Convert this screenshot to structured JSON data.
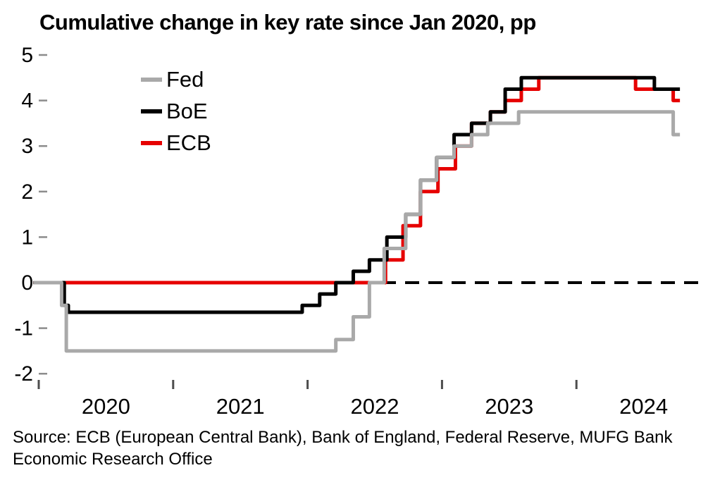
{
  "chart_data": {
    "type": "line",
    "title": "Cumulative change in key rate since Jan 2020, pp",
    "xlabel": "",
    "ylabel": "",
    "legend_position": "upper-left-inside",
    "grid": false,
    "zero_line": {
      "style": "dashed",
      "color": "#000000"
    },
    "ylim": [
      -2.3,
      5.1
    ],
    "yticks": [
      5,
      4,
      3,
      2,
      1,
      0,
      -1,
      -2
    ],
    "xtick_years": [
      "2020",
      "2021",
      "2022",
      "2023",
      "2024"
    ],
    "x_unit": "years since Jan 2020",
    "t_start": -0.04,
    "t_end": 4.77,
    "series": [
      {
        "name": "Fed",
        "color": "#a9a9a9",
        "steps": [
          [
            -0.04,
            0
          ],
          [
            0.17,
            -0.5
          ],
          [
            0.205,
            -1.5
          ],
          [
            2.21,
            -1.25
          ],
          [
            2.34,
            -0.75
          ],
          [
            2.46,
            0
          ],
          [
            2.57,
            0.75
          ],
          [
            2.73,
            1.5
          ],
          [
            2.84,
            2.25
          ],
          [
            2.96,
            2.75
          ],
          [
            3.09,
            3.0
          ],
          [
            3.22,
            3.25
          ],
          [
            3.34,
            3.5
          ],
          [
            3.57,
            3.75
          ],
          [
            4.72,
            3.25
          ]
        ]
      },
      {
        "name": "BoE",
        "color": "#000000",
        "steps": [
          [
            -0.04,
            0
          ],
          [
            0.19,
            -0.5
          ],
          [
            0.22,
            -0.65
          ],
          [
            1.96,
            -0.5
          ],
          [
            2.09,
            -0.25
          ],
          [
            2.21,
            0
          ],
          [
            2.34,
            0.25
          ],
          [
            2.46,
            0.5
          ],
          [
            2.59,
            1.0
          ],
          [
            2.73,
            1.5
          ],
          [
            2.84,
            2.25
          ],
          [
            2.96,
            2.75
          ],
          [
            3.09,
            3.25
          ],
          [
            3.22,
            3.5
          ],
          [
            3.36,
            3.75
          ],
          [
            3.47,
            4.25
          ],
          [
            3.59,
            4.5
          ],
          [
            4.58,
            4.25
          ]
        ]
      },
      {
        "name": "ECB",
        "color": "#e60000",
        "steps": [
          [
            -0.04,
            0
          ],
          [
            2.58,
            0.5
          ],
          [
            2.71,
            1.25
          ],
          [
            2.84,
            2.0
          ],
          [
            2.97,
            2.5
          ],
          [
            3.1,
            3.0
          ],
          [
            3.22,
            3.5
          ],
          [
            3.36,
            3.75
          ],
          [
            3.47,
            4.0
          ],
          [
            3.59,
            4.25
          ],
          [
            3.72,
            4.5
          ],
          [
            4.44,
            4.25
          ],
          [
            4.72,
            4.0
          ]
        ]
      }
    ],
    "draw_order": [
      2,
      1,
      0
    ],
    "end_values": {
      "Fed": 3.25,
      "BoE": 4.25,
      "ECB": 4.0
    },
    "peak_values": {
      "Fed": 3.75,
      "BoE": 4.5,
      "ECB": 4.5
    }
  },
  "legend": {
    "items": [
      {
        "label": "Fed"
      },
      {
        "label": "BoE"
      },
      {
        "label": "ECB"
      }
    ]
  },
  "source": {
    "text": "Source: ECB (European Central Bank), Bank of England, Federal Reserve, MUFG Bank Economic Research Office"
  }
}
